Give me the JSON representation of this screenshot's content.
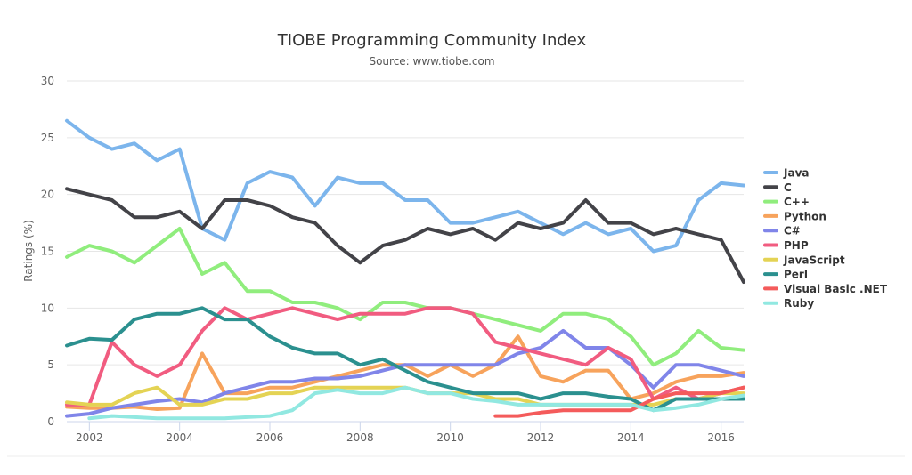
{
  "chart_data": {
    "type": "line",
    "title": "TIOBE Programming Community Index",
    "subtitle": "Source: www.tiobe.com",
    "ylabel": "Ratings (%)",
    "xlabel": "",
    "xlim": [
      2001.5,
      2016.5
    ],
    "ylim": [
      0,
      30
    ],
    "yticks": [
      0,
      5,
      10,
      15,
      20,
      25,
      30
    ],
    "xticks": [
      2002,
      2004,
      2006,
      2008,
      2010,
      2012,
      2014,
      2016
    ],
    "grid": "horizontal",
    "legend_placement": "right",
    "x": [
      2001.5,
      2002,
      2002.5,
      2003,
      2003.5,
      2004,
      2004.5,
      2005,
      2005.5,
      2006,
      2006.5,
      2007,
      2007.5,
      2008,
      2008.5,
      2009,
      2009.5,
      2010,
      2010.5,
      2011,
      2011.5,
      2012,
      2012.5,
      2013,
      2013.5,
      2014,
      2014.5,
      2015,
      2015.5,
      2016,
      2016.5
    ],
    "series": [
      {
        "name": "Java",
        "color": "#7cb5ec",
        "values": [
          26.5,
          25,
          24,
          24.5,
          23,
          24,
          17,
          16,
          21,
          22,
          21.5,
          19,
          21.5,
          21,
          21,
          19.5,
          19.5,
          17.5,
          17.5,
          18,
          18.5,
          17.5,
          16.5,
          17.5,
          16.5,
          17,
          15,
          15.5,
          19.5,
          21,
          20.8
        ]
      },
      {
        "name": "C",
        "color": "#434348",
        "values": [
          20.5,
          20,
          19.5,
          18,
          18,
          18.5,
          17,
          19.5,
          19.5,
          19,
          18,
          17.5,
          15.5,
          14,
          15.5,
          16,
          17,
          16.5,
          17,
          16,
          17.5,
          17,
          17.5,
          19.5,
          17.5,
          17.5,
          16.5,
          17,
          16.5,
          16,
          12.3
        ]
      },
      {
        "name": "C++",
        "color": "#90ed7d",
        "values": [
          14.5,
          15.5,
          15,
          14,
          15.5,
          17,
          13,
          14,
          11.5,
          11.5,
          10.5,
          10.5,
          10,
          9,
          10.5,
          10.5,
          10,
          10,
          9.5,
          9,
          8.5,
          8,
          9.5,
          9.5,
          9,
          7.5,
          5,
          6,
          8,
          6.5,
          6.3
        ]
      },
      {
        "name": "Python",
        "color": "#f7a35c",
        "values": [
          1.3,
          1.2,
          1.2,
          1.3,
          1.1,
          1.2,
          6,
          2.5,
          2.5,
          3,
          3,
          3.5,
          4,
          4.5,
          5,
          5,
          4,
          5,
          4,
          5,
          7.5,
          4,
          3.5,
          4.5,
          4.5,
          2,
          2.5,
          3.5,
          4,
          4,
          4.3
        ]
      },
      {
        "name": "C#",
        "color": "#8085e9",
        "values": [
          0.5,
          0.7,
          1.2,
          1.5,
          1.8,
          2,
          1.7,
          2.5,
          3,
          3.5,
          3.5,
          3.8,
          3.8,
          4,
          4.5,
          5,
          5,
          5,
          5,
          5,
          6,
          6.5,
          8,
          6.5,
          6.5,
          5,
          3,
          5,
          5,
          4.5,
          4
        ]
      },
      {
        "name": "PHP",
        "color": "#f15c80",
        "values": [
          1.5,
          1.5,
          7,
          5,
          4,
          5,
          8,
          10,
          9,
          9.5,
          10,
          9.5,
          9,
          9.5,
          9.5,
          9.5,
          10,
          10,
          9.5,
          7,
          6.5,
          6,
          5.5,
          5,
          6.5,
          5.5,
          2,
          3,
          2,
          2.5,
          3
        ]
      },
      {
        "name": "JavaScript",
        "color": "#e4d354",
        "values": [
          1.7,
          1.5,
          1.5,
          2.5,
          3,
          1.5,
          1.5,
          2,
          2,
          2.5,
          2.5,
          3,
          3,
          3,
          3,
          3,
          2.5,
          2.5,
          2.5,
          2,
          2,
          1.5,
          1.5,
          1.5,
          1.5,
          1.5,
          1.5,
          2,
          2,
          2.5,
          2.5
        ]
      },
      {
        "name": "Perl",
        "color": "#2b908f",
        "values": [
          6.7,
          7.3,
          7.2,
          9,
          9.5,
          9.5,
          10,
          9,
          9,
          7.5,
          6.5,
          6,
          6,
          5,
          5.5,
          4.5,
          3.5,
          3,
          2.5,
          2.5,
          2.5,
          2,
          2.5,
          2.5,
          2.2,
          2,
          1,
          2,
          2,
          2,
          2
        ]
      },
      {
        "name": "Visual Basic .NET",
        "color": "#f45b5b",
        "values": [
          null,
          null,
          null,
          null,
          null,
          null,
          null,
          null,
          null,
          null,
          null,
          null,
          null,
          null,
          null,
          null,
          null,
          null,
          null,
          0.5,
          0.5,
          0.8,
          1,
          1,
          1,
          1,
          2,
          2.5,
          2.5,
          2.5,
          3
        ]
      },
      {
        "name": "Ruby",
        "color": "#91e8e1",
        "values": [
          null,
          0.3,
          0.5,
          0.4,
          0.3,
          0.3,
          0.3,
          0.3,
          0.4,
          0.5,
          1,
          2.5,
          2.8,
          2.5,
          2.5,
          3,
          2.5,
          2.5,
          2,
          1.8,
          1.5,
          1.5,
          1.5,
          1.5,
          1.5,
          1.5,
          1,
          1.2,
          1.5,
          2,
          2.3
        ]
      }
    ]
  }
}
